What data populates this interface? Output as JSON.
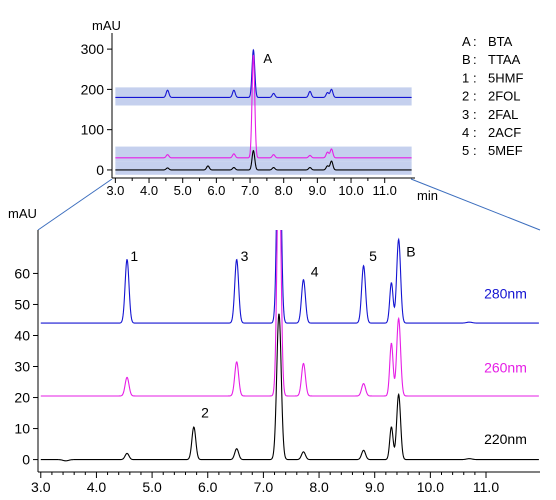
{
  "chart_data": [
    {
      "type": "line",
      "panel": "overview",
      "ylabel": "mAU",
      "xlabel": "min",
      "xlim": [
        2.9,
        11.9
      ],
      "ylim": [
        -20,
        340
      ],
      "x_ticks": [
        3.0,
        4.0,
        5.0,
        6.0,
        7.0,
        8.0,
        9.0,
        10.0,
        11.0
      ],
      "x_tick_labels": [
        "3.0",
        "4.0",
        "5.0",
        "6.0",
        "7.0",
        "8.0",
        "9.0",
        "10.0",
        "11.0"
      ],
      "y_ticks": [
        0,
        100,
        200,
        300
      ],
      "y_tick_labels": [
        "0",
        "100",
        "200",
        "300"
      ],
      "highlight_bands": [
        {
          "x": [
            3.0,
            11.8
          ],
          "y": [
            160,
            205
          ]
        },
        {
          "x": [
            3.0,
            11.8
          ],
          "y": [
            20,
            58
          ]
        },
        {
          "x": [
            3.0,
            11.8
          ],
          "y": [
            -12,
            20
          ]
        }
      ],
      "peak_label": {
        "text": "A",
        "x": 7.1,
        "y": 265
      },
      "zoom_window": {
        "x": [
          3.0,
          11.4
        ]
      },
      "series": [
        {
          "color": "#1414d2",
          "baseline": 180,
          "peaks": [
            {
              "x": 4.55,
              "h": 18
            },
            {
              "x": 6.52,
              "h": 18
            },
            {
              "x": 7.1,
              "h": 118
            },
            {
              "x": 7.7,
              "h": 10
            },
            {
              "x": 8.78,
              "h": 15
            },
            {
              "x": 9.3,
              "h": 12
            },
            {
              "x": 9.42,
              "h": 20
            }
          ]
        },
        {
          "color": "#e61ee6",
          "baseline": 30,
          "peaks": [
            {
              "x": 4.55,
              "h": 8
            },
            {
              "x": 6.52,
              "h": 10
            },
            {
              "x": 7.1,
              "h": 255
            },
            {
              "x": 7.7,
              "h": 8
            },
            {
              "x": 8.78,
              "h": 6
            },
            {
              "x": 9.3,
              "h": 14
            },
            {
              "x": 9.42,
              "h": 22
            }
          ]
        },
        {
          "color": "#000000",
          "baseline": 0,
          "peaks": [
            {
              "x": 4.55,
              "h": 5
            },
            {
              "x": 5.75,
              "h": 10
            },
            {
              "x": 6.52,
              "h": 6
            },
            {
              "x": 7.1,
              "h": 48
            },
            {
              "x": 7.7,
              "h": 6
            },
            {
              "x": 8.78,
              "h": 6
            },
            {
              "x": 9.3,
              "h": 10
            },
            {
              "x": 9.42,
              "h": 22
            }
          ]
        }
      ]
    },
    {
      "type": "line",
      "panel": "zoom",
      "ylabel": "mAU",
      "xlim": [
        2.95,
        11.97
      ],
      "ylim": [
        -4,
        74
      ],
      "x_ticks": [
        3.0,
        4.0,
        5.0,
        6.0,
        7.0,
        8.0,
        9.0,
        10.0,
        11.0
      ],
      "x_tick_labels": [
        "3.0",
        "4.0",
        "5.0",
        "6.0",
        "7.0",
        "8.0",
        "9.0",
        "10.0",
        "11.0"
      ],
      "y_ticks": [
        0,
        10,
        20,
        30,
        40,
        50,
        60
      ],
      "y_tick_labels": [
        "0",
        "10",
        "20",
        "30",
        "40",
        "50",
        "60"
      ],
      "series": [
        {
          "name": "280nm",
          "color": "#1414d2",
          "baseline": 44,
          "peaks": [
            {
              "x": 4.55,
              "h": 20.5,
              "w": 0.035
            },
            {
              "x": 6.52,
              "h": 20.5,
              "w": 0.035
            },
            {
              "x": 7.28,
              "h": 80,
              "w": 0.035
            },
            {
              "x": 7.72,
              "h": 14,
              "w": 0.035
            },
            {
              "x": 8.8,
              "h": 18.5,
              "w": 0.035
            },
            {
              "x": 9.3,
              "h": 13,
              "w": 0.03
            },
            {
              "x": 9.43,
              "h": 27,
              "w": 0.035
            },
            {
              "x": 10.7,
              "h": 0.3,
              "w": 0.05
            }
          ]
        },
        {
          "name": "260nm",
          "color": "#e61ee6",
          "baseline": 20.5,
          "peaks": [
            {
              "x": 4.55,
              "h": 6,
              "w": 0.035
            },
            {
              "x": 6.52,
              "h": 11,
              "w": 0.035
            },
            {
              "x": 7.28,
              "h": 80,
              "w": 0.035
            },
            {
              "x": 7.72,
              "h": 10.5,
              "w": 0.035
            },
            {
              "x": 8.8,
              "h": 4,
              "w": 0.035
            },
            {
              "x": 9.3,
              "h": 17,
              "w": 0.03
            },
            {
              "x": 9.43,
              "h": 25,
              "w": 0.035
            }
          ]
        },
        {
          "name": "220nm",
          "color": "#000000",
          "baseline": 0,
          "peaks": [
            {
              "x": 3.45,
              "h": -0.4,
              "w": 0.05
            },
            {
              "x": 4.55,
              "h": 2,
              "w": 0.035
            },
            {
              "x": 5.75,
              "h": 10.5,
              "w": 0.035
            },
            {
              "x": 6.52,
              "h": 3.5,
              "w": 0.035
            },
            {
              "x": 7.28,
              "h": 47,
              "w": 0.04
            },
            {
              "x": 7.72,
              "h": 2.5,
              "w": 0.035
            },
            {
              "x": 8.8,
              "h": 3,
              "w": 0.035
            },
            {
              "x": 9.3,
              "h": 10.5,
              "w": 0.03
            },
            {
              "x": 9.43,
              "h": 21,
              "w": 0.035
            },
            {
              "x": 10.7,
              "h": 0.3,
              "w": 0.05
            }
          ]
        }
      ],
      "series_labels": [
        {
          "text": "280nm",
          "color": "#1414d2",
          "x": 11.35,
          "y": 52
        },
        {
          "text": "260nm",
          "color": "#e61ee6",
          "x": 11.35,
          "y": 28
        },
        {
          "text": "220nm",
          "color": "#000000",
          "x": 11.35,
          "y": 5
        }
      ],
      "peak_labels": [
        {
          "text": "1",
          "x": 4.68,
          "y": 64
        },
        {
          "text": "3",
          "x": 6.66,
          "y": 64
        },
        {
          "text": "4",
          "x": 7.92,
          "y": 59
        },
        {
          "text": "5",
          "x": 8.97,
          "y": 64
        },
        {
          "text": "B",
          "x": 9.65,
          "y": 65.5
        },
        {
          "text": "2",
          "x": 5.95,
          "y": 13.5
        }
      ]
    }
  ],
  "legend": {
    "items": [
      {
        "key": "A",
        "sep": ":",
        "name": "BTA"
      },
      {
        "key": "B",
        "sep": ":",
        "name": "TTAA"
      },
      {
        "key": "1",
        "sep": ":",
        "name": "5HMF"
      },
      {
        "key": "2",
        "sep": ":",
        "name": "2FOL"
      },
      {
        "key": "3",
        "sep": ":",
        "name": "2FAL"
      },
      {
        "key": "4",
        "sep": ":",
        "name": "2ACF"
      },
      {
        "key": "5",
        "sep": ":",
        "name": "5MEF"
      }
    ]
  },
  "colors": {
    "band": "#c5d0ee",
    "axis": "#000000",
    "zoom_connector": "#3c6ebe"
  }
}
